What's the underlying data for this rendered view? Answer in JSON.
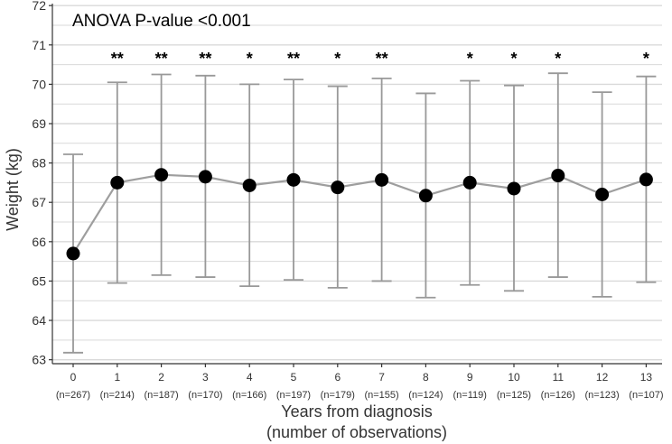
{
  "chart_data": {
    "type": "scatter",
    "title": "ANOVA P-value <0.001",
    "xlabel_lines": [
      "Years from diagnosis",
      "(number of observations)"
    ],
    "ylabel": "Weight (kg)",
    "ylim": [
      62.9,
      72.05
    ],
    "yticks": [
      63,
      64,
      65,
      66,
      67,
      68,
      69,
      70,
      71,
      72
    ],
    "grid": true,
    "categories": [
      "0",
      "1",
      "2",
      "3",
      "4",
      "5",
      "6",
      "7",
      "8",
      "9",
      "10",
      "11",
      "12",
      "13"
    ],
    "n_labels": [
      "(n=267)",
      "(n=214)",
      "(n=187)",
      "(n=170)",
      "(n=166)",
      "(n=197)",
      "(n=179)",
      "(n=155)",
      "(n=124)",
      "(n=119)",
      "(n=125)",
      "(n=126)",
      "(n=123)",
      "(n=107)"
    ],
    "means": [
      65.7,
      67.5,
      67.7,
      67.65,
      67.43,
      67.57,
      67.38,
      67.57,
      67.17,
      67.5,
      67.35,
      67.68,
      67.2,
      67.58
    ],
    "upper": [
      68.22,
      70.05,
      70.25,
      70.22,
      70.0,
      70.12,
      69.95,
      70.15,
      69.77,
      70.09,
      69.97,
      70.28,
      69.8,
      70.2
    ],
    "lower": [
      63.18,
      64.95,
      65.15,
      65.1,
      64.87,
      65.03,
      64.83,
      65.0,
      64.58,
      64.9,
      64.75,
      65.1,
      64.6,
      64.97
    ],
    "significance": [
      "",
      "**",
      "**",
      "**",
      "*",
      "**",
      "*",
      "**",
      "",
      "*",
      "*",
      "*",
      "",
      "*"
    ],
    "colors": {
      "line": "#9e9e9e",
      "errorbar": "#999999",
      "point": "#000000",
      "grid": "#d9d9d9"
    }
  }
}
